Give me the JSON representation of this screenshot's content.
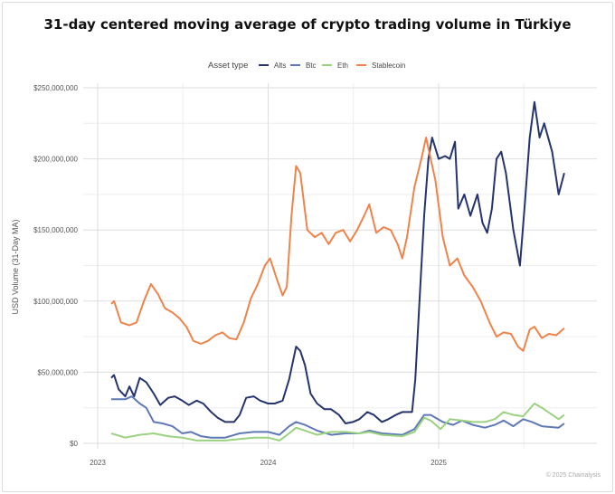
{
  "chart_data": {
    "type": "line",
    "title": "31-day centered moving average of crypto trading volume in Türkiye",
    "ylabel": "USD Volume (31-Day MA)",
    "xlabel": "",
    "ylim": [
      0,
      250000000
    ],
    "xlim": [
      "2022-12-01",
      "2025-11-20"
    ],
    "y_ticks": [
      {
        "value": 0,
        "label": "$0"
      },
      {
        "value": 50000000,
        "label": "$50,000,000"
      },
      {
        "value": 100000000,
        "label": "$100,000,000"
      },
      {
        "value": 150000000,
        "label": "$150,000,000"
      },
      {
        "value": 200000000,
        "label": "$200,000,000"
      },
      {
        "value": 250000000,
        "label": "$250,000,000"
      }
    ],
    "x_ticks": [
      {
        "value": "2023-01-01",
        "label": "2023"
      },
      {
        "value": "2024-01-01",
        "label": "2024"
      },
      {
        "value": "2025-01-01",
        "label": "2025"
      }
    ],
    "grid": true,
    "legend": {
      "title": "Asset type",
      "placement": "top"
    },
    "value_unit": "USD millions",
    "series": [
      {
        "name": "Alts",
        "color": "#26346e",
        "points": [
          [
            "2023-01-30",
            46
          ],
          [
            "2023-02-05",
            48
          ],
          [
            "2023-02-15",
            38
          ],
          [
            "2023-03-01",
            33
          ],
          [
            "2023-03-10",
            40
          ],
          [
            "2023-03-20",
            33
          ],
          [
            "2023-04-01",
            46
          ],
          [
            "2023-04-15",
            43
          ],
          [
            "2023-05-01",
            35
          ],
          [
            "2023-05-15",
            27
          ],
          [
            "2023-06-01",
            32
          ],
          [
            "2023-06-15",
            33
          ],
          [
            "2023-07-01",
            30
          ],
          [
            "2023-07-15",
            27
          ],
          [
            "2023-08-01",
            30
          ],
          [
            "2023-08-15",
            28
          ],
          [
            "2023-09-01",
            22
          ],
          [
            "2023-09-15",
            18
          ],
          [
            "2023-10-01",
            15
          ],
          [
            "2023-10-20",
            15
          ],
          [
            "2023-11-01",
            20
          ],
          [
            "2023-11-15",
            32
          ],
          [
            "2023-12-01",
            33
          ],
          [
            "2023-12-15",
            30
          ],
          [
            "2024-01-01",
            28
          ],
          [
            "2024-01-15",
            28
          ],
          [
            "2024-02-01",
            30
          ],
          [
            "2024-02-15",
            45
          ],
          [
            "2024-03-01",
            68
          ],
          [
            "2024-03-10",
            65
          ],
          [
            "2024-03-20",
            55
          ],
          [
            "2024-04-01",
            35
          ],
          [
            "2024-04-15",
            28
          ],
          [
            "2024-05-01",
            24
          ],
          [
            "2024-05-15",
            24
          ],
          [
            "2024-06-01",
            20
          ],
          [
            "2024-06-15",
            14
          ],
          [
            "2024-07-01",
            15
          ],
          [
            "2024-07-15",
            17
          ],
          [
            "2024-08-01",
            22
          ],
          [
            "2024-08-15",
            20
          ],
          [
            "2024-09-01",
            15
          ],
          [
            "2024-09-15",
            17
          ],
          [
            "2024-10-01",
            20
          ],
          [
            "2024-10-15",
            22
          ],
          [
            "2024-11-05",
            22
          ],
          [
            "2024-11-12",
            45
          ],
          [
            "2024-11-20",
            95
          ],
          [
            "2024-12-01",
            160
          ],
          [
            "2024-12-10",
            200
          ],
          [
            "2024-12-18",
            215
          ],
          [
            "2025-01-01",
            200
          ],
          [
            "2025-01-15",
            202
          ],
          [
            "2025-01-25",
            200
          ],
          [
            "2025-02-05",
            212
          ],
          [
            "2025-02-12",
            165
          ],
          [
            "2025-02-25",
            175
          ],
          [
            "2025-03-10",
            160
          ],
          [
            "2025-03-25",
            175
          ],
          [
            "2025-04-05",
            155
          ],
          [
            "2025-04-15",
            148
          ],
          [
            "2025-04-25",
            165
          ],
          [
            "2025-05-05",
            200
          ],
          [
            "2025-05-15",
            205
          ],
          [
            "2025-05-25",
            190
          ],
          [
            "2025-06-10",
            150
          ],
          [
            "2025-06-24",
            125
          ],
          [
            "2025-07-05",
            170
          ],
          [
            "2025-07-15",
            215
          ],
          [
            "2025-07-25",
            240
          ],
          [
            "2025-08-05",
            215
          ],
          [
            "2025-08-15",
            225
          ],
          [
            "2025-09-01",
            205
          ],
          [
            "2025-09-15",
            175
          ],
          [
            "2025-09-27",
            190
          ]
        ]
      },
      {
        "name": "Btc",
        "color": "#5f78b7",
        "points": [
          [
            "2023-01-30",
            31
          ],
          [
            "2023-03-01",
            31
          ],
          [
            "2023-03-15",
            33
          ],
          [
            "2023-04-01",
            28
          ],
          [
            "2023-04-15",
            25
          ],
          [
            "2023-05-01",
            15
          ],
          [
            "2023-05-20",
            14
          ],
          [
            "2023-06-10",
            12
          ],
          [
            "2023-07-01",
            7
          ],
          [
            "2023-07-20",
            8
          ],
          [
            "2023-08-10",
            5
          ],
          [
            "2023-09-01",
            4
          ],
          [
            "2023-10-01",
            4
          ],
          [
            "2023-11-01",
            7
          ],
          [
            "2023-12-01",
            8
          ],
          [
            "2024-01-01",
            8
          ],
          [
            "2024-01-25",
            6
          ],
          [
            "2024-02-15",
            12
          ],
          [
            "2024-03-01",
            15
          ],
          [
            "2024-03-20",
            13
          ],
          [
            "2024-04-15",
            9
          ],
          [
            "2024-05-15",
            6
          ],
          [
            "2024-06-15",
            7
          ],
          [
            "2024-07-15",
            7
          ],
          [
            "2024-08-05",
            9
          ],
          [
            "2024-09-01",
            7
          ],
          [
            "2024-10-15",
            6
          ],
          [
            "2024-11-10",
            10
          ],
          [
            "2024-12-01",
            20
          ],
          [
            "2024-12-15",
            20
          ],
          [
            "2025-01-10",
            15
          ],
          [
            "2025-02-01",
            13
          ],
          [
            "2025-02-20",
            16
          ],
          [
            "2025-03-15",
            13
          ],
          [
            "2025-04-10",
            11
          ],
          [
            "2025-05-01",
            13
          ],
          [
            "2025-05-20",
            16
          ],
          [
            "2025-06-10",
            12
          ],
          [
            "2025-07-01",
            17
          ],
          [
            "2025-07-20",
            15
          ],
          [
            "2025-08-10",
            12
          ],
          [
            "2025-09-15",
            11
          ],
          [
            "2025-09-27",
            14
          ]
        ]
      },
      {
        "name": "Eth",
        "color": "#9ad27f",
        "points": [
          [
            "2023-01-30",
            7
          ],
          [
            "2023-03-01",
            4
          ],
          [
            "2023-04-01",
            6
          ],
          [
            "2023-05-01",
            7
          ],
          [
            "2023-06-01",
            5
          ],
          [
            "2023-07-01",
            4
          ],
          [
            "2023-08-01",
            2
          ],
          [
            "2023-09-01",
            2
          ],
          [
            "2023-10-01",
            2
          ],
          [
            "2023-11-01",
            3
          ],
          [
            "2023-12-01",
            4
          ],
          [
            "2024-01-01",
            4
          ],
          [
            "2024-01-25",
            2
          ],
          [
            "2024-02-15",
            7
          ],
          [
            "2024-03-01",
            11
          ],
          [
            "2024-03-20",
            9
          ],
          [
            "2024-04-15",
            6
          ],
          [
            "2024-05-15",
            8
          ],
          [
            "2024-06-15",
            8
          ],
          [
            "2024-07-15",
            7
          ],
          [
            "2024-08-05",
            8
          ],
          [
            "2024-09-01",
            6
          ],
          [
            "2024-10-15",
            5
          ],
          [
            "2024-11-10",
            8
          ],
          [
            "2024-12-01",
            18
          ],
          [
            "2024-12-15",
            16
          ],
          [
            "2025-01-05",
            10
          ],
          [
            "2025-01-25",
            17
          ],
          [
            "2025-02-20",
            16
          ],
          [
            "2025-03-15",
            15
          ],
          [
            "2025-04-10",
            15
          ],
          [
            "2025-05-01",
            17
          ],
          [
            "2025-05-20",
            22
          ],
          [
            "2025-06-10",
            20
          ],
          [
            "2025-07-01",
            19
          ],
          [
            "2025-07-25",
            28
          ],
          [
            "2025-08-10",
            25
          ],
          [
            "2025-09-15",
            17
          ],
          [
            "2025-09-27",
            20
          ]
        ]
      },
      {
        "name": "Stablecoin",
        "color": "#f0834a",
        "points": [
          [
            "2023-01-30",
            98
          ],
          [
            "2023-02-05",
            100
          ],
          [
            "2023-02-20",
            85
          ],
          [
            "2023-03-10",
            83
          ],
          [
            "2023-03-25",
            85
          ],
          [
            "2023-04-10",
            100
          ],
          [
            "2023-04-25",
            112
          ],
          [
            "2023-05-10",
            105
          ],
          [
            "2023-05-25",
            95
          ],
          [
            "2023-06-10",
            92
          ],
          [
            "2023-06-25",
            88
          ],
          [
            "2023-07-10",
            82
          ],
          [
            "2023-07-25",
            72
          ],
          [
            "2023-08-10",
            70
          ],
          [
            "2023-08-25",
            72
          ],
          [
            "2023-09-10",
            76
          ],
          [
            "2023-09-25",
            78
          ],
          [
            "2023-10-10",
            74
          ],
          [
            "2023-10-25",
            73
          ],
          [
            "2023-11-10",
            85
          ],
          [
            "2023-11-25",
            102
          ],
          [
            "2023-12-10",
            112
          ],
          [
            "2023-12-25",
            125
          ],
          [
            "2024-01-05",
            130
          ],
          [
            "2024-01-20",
            115
          ],
          [
            "2024-02-01",
            104
          ],
          [
            "2024-02-10",
            110
          ],
          [
            "2024-02-20",
            160
          ],
          [
            "2024-03-01",
            195
          ],
          [
            "2024-03-10",
            190
          ],
          [
            "2024-03-25",
            150
          ],
          [
            "2024-04-10",
            145
          ],
          [
            "2024-04-25",
            148
          ],
          [
            "2024-05-10",
            140
          ],
          [
            "2024-05-25",
            148
          ],
          [
            "2024-06-10",
            150
          ],
          [
            "2024-06-25",
            142
          ],
          [
            "2024-07-10",
            150
          ],
          [
            "2024-07-25",
            160
          ],
          [
            "2024-08-05",
            168
          ],
          [
            "2024-08-20",
            148
          ],
          [
            "2024-09-05",
            152
          ],
          [
            "2024-09-20",
            150
          ],
          [
            "2024-10-05",
            140
          ],
          [
            "2024-10-15",
            130
          ],
          [
            "2024-10-25",
            145
          ],
          [
            "2024-11-10",
            180
          ],
          [
            "2024-11-25",
            200
          ],
          [
            "2024-12-05",
            215
          ],
          [
            "2024-12-15",
            200
          ],
          [
            "2024-12-25",
            185
          ],
          [
            "2025-01-10",
            145
          ],
          [
            "2025-01-25",
            125
          ],
          [
            "2025-02-10",
            130
          ],
          [
            "2025-02-25",
            118
          ],
          [
            "2025-03-15",
            110
          ],
          [
            "2025-04-01",
            100
          ],
          [
            "2025-04-20",
            85
          ],
          [
            "2025-05-05",
            75
          ],
          [
            "2025-05-20",
            78
          ],
          [
            "2025-06-05",
            77
          ],
          [
            "2025-06-20",
            68
          ],
          [
            "2025-07-01",
            65
          ],
          [
            "2025-07-15",
            80
          ],
          [
            "2025-07-25",
            82
          ],
          [
            "2025-08-10",
            74
          ],
          [
            "2025-08-25",
            77
          ],
          [
            "2025-09-10",
            76
          ],
          [
            "2025-09-27",
            81
          ]
        ]
      }
    ]
  },
  "footer": {
    "copyright": "© 2025 Chainalysis"
  }
}
